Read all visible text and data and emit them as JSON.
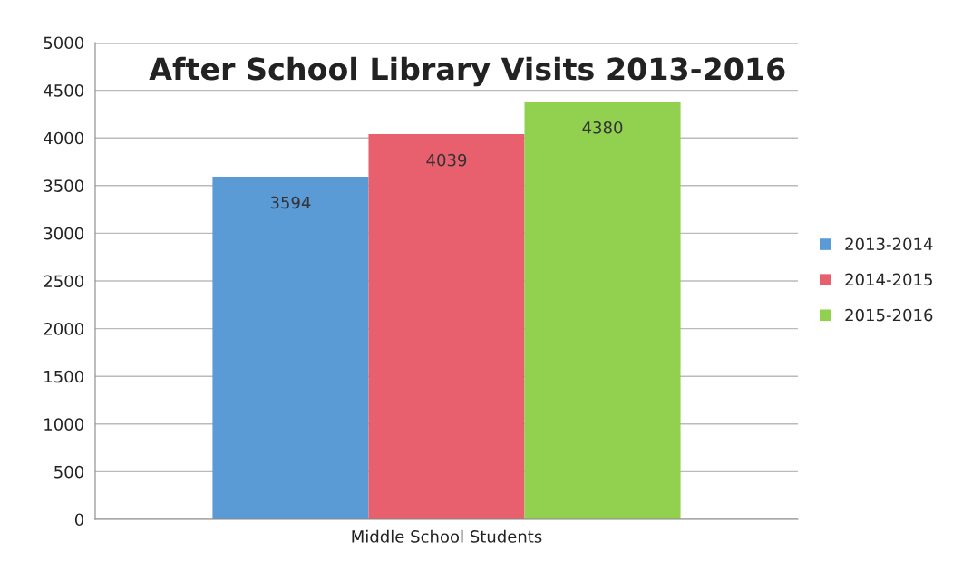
{
  "chart_data": {
    "type": "bar",
    "title": "After School Library Visits 2013-2016",
    "categories": [
      "Middle School Students"
    ],
    "series": [
      {
        "name": "2013-2014",
        "color": "#5b9bd5",
        "values": [
          3594
        ]
      },
      {
        "name": "2014-2015",
        "color": "#e8606e",
        "values": [
          4039
        ]
      },
      {
        "name": "2015-2016",
        "color": "#92d050",
        "values": [
          4380
        ]
      }
    ],
    "ylim": [
      0,
      5000
    ],
    "yticks": [
      0,
      500,
      1000,
      1500,
      2000,
      2500,
      3000,
      3500,
      4000,
      4500,
      5000
    ],
    "grid": "y",
    "legend": "right",
    "data_labels": true
  }
}
